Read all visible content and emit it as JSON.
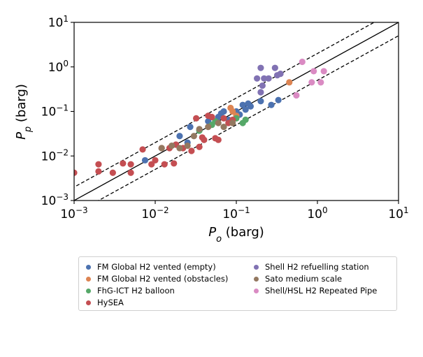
{
  "chart_data": {
    "type": "scatter",
    "xlabel_base": "P",
    "xlabel_sub": "o",
    "xlabel_unit": " (barg)",
    "ylabel_base": "P",
    "ylabel_sub": "p",
    "ylabel_unit": " (barg)",
    "xscale": "log",
    "yscale": "log",
    "xlim": [
      0.001,
      10
    ],
    "ylim": [
      0.001,
      10
    ],
    "grid": false,
    "legend_placement": "below",
    "ticks": [
      {
        "value": 0.001,
        "base": "10",
        "exp": "−3"
      },
      {
        "value": 0.01,
        "base": "10",
        "exp": "−2"
      },
      {
        "value": 0.1,
        "base": "10",
        "exp": "−1"
      },
      {
        "value": 1,
        "base": "10",
        "exp": "0"
      },
      {
        "value": 10,
        "base": "10",
        "exp": "1"
      }
    ],
    "reference_lines": [
      {
        "kind": "parity",
        "factor": 1,
        "style": "solid"
      },
      {
        "kind": "bound",
        "factor": 2,
        "style": "dashed"
      },
      {
        "kind": "bound",
        "factor": 0.5,
        "style": "dashed"
      }
    ],
    "series": [
      {
        "name": "FM Global H2 vented (empty)",
        "color": "#4c72b0",
        "points": [
          [
            0.0075,
            0.008
          ],
          [
            0.02,
            0.028
          ],
          [
            0.025,
            0.02
          ],
          [
            0.027,
            0.045
          ],
          [
            0.045,
            0.06
          ],
          [
            0.06,
            0.075
          ],
          [
            0.065,
            0.09
          ],
          [
            0.07,
            0.1
          ],
          [
            0.08,
            0.065
          ],
          [
            0.1,
            0.1
          ],
          [
            0.11,
            0.085
          ],
          [
            0.12,
            0.14
          ],
          [
            0.13,
            0.11
          ],
          [
            0.14,
            0.15
          ],
          [
            0.15,
            0.13
          ],
          [
            0.2,
            0.17
          ],
          [
            0.27,
            0.14
          ],
          [
            0.33,
            0.18
          ]
        ]
      },
      {
        "name": "FM Global H2 vented (obstacles)",
        "color": "#dd8452",
        "points": [
          [
            0.085,
            0.12
          ],
          [
            0.09,
            0.1
          ],
          [
            0.1,
            0.08
          ],
          [
            0.45,
            0.45
          ]
        ]
      },
      {
        "name": "FhG-ICT H2 balloon",
        "color": "#55a868",
        "points": [
          [
            0.035,
            0.037
          ],
          [
            0.05,
            0.05
          ],
          [
            0.055,
            0.06
          ],
          [
            0.1,
            0.07
          ],
          [
            0.12,
            0.055
          ],
          [
            0.13,
            0.065
          ]
        ]
      },
      {
        "name": "HySEA",
        "color": "#c44e52",
        "points": [
          [
            0.001,
            0.0042
          ],
          [
            0.002,
            0.0045
          ],
          [
            0.002,
            0.0065
          ],
          [
            0.003,
            0.0042
          ],
          [
            0.004,
            0.0068
          ],
          [
            0.005,
            0.0065
          ],
          [
            0.005,
            0.0042
          ],
          [
            0.007,
            0.014
          ],
          [
            0.009,
            0.0065
          ],
          [
            0.01,
            0.008
          ],
          [
            0.012,
            0.015
          ],
          [
            0.013,
            0.0065
          ],
          [
            0.015,
            0.015
          ],
          [
            0.017,
            0.0068
          ],
          [
            0.018,
            0.018
          ],
          [
            0.022,
            0.015
          ],
          [
            0.028,
            0.013
          ],
          [
            0.032,
            0.07
          ],
          [
            0.035,
            0.016
          ],
          [
            0.038,
            0.026
          ],
          [
            0.04,
            0.023
          ],
          [
            0.045,
            0.08
          ],
          [
            0.05,
            0.075
          ],
          [
            0.055,
            0.025
          ],
          [
            0.06,
            0.023
          ],
          [
            0.07,
            0.07
          ],
          [
            0.08,
            0.055
          ],
          [
            0.09,
            0.065
          ]
        ]
      },
      {
        "name": "Shell H2 refuelling station",
        "color": "#8172b3",
        "points": [
          [
            0.18,
            0.55
          ],
          [
            0.2,
            0.95
          ],
          [
            0.2,
            0.27
          ],
          [
            0.21,
            0.38
          ],
          [
            0.22,
            0.55
          ],
          [
            0.25,
            0.55
          ],
          [
            0.3,
            0.95
          ],
          [
            0.32,
            0.65
          ],
          [
            0.35,
            0.7
          ]
        ]
      },
      {
        "name": "Sato medium scale",
        "color": "#937860",
        "points": [
          [
            0.012,
            0.015
          ],
          [
            0.016,
            0.017
          ],
          [
            0.02,
            0.015
          ],
          [
            0.025,
            0.017
          ],
          [
            0.03,
            0.028
          ],
          [
            0.035,
            0.04
          ],
          [
            0.045,
            0.045
          ],
          [
            0.06,
            0.055
          ],
          [
            0.07,
            0.045
          ],
          [
            0.09,
            0.055
          ]
        ]
      },
      {
        "name": "Shell/HSL H2 Repeated Pipe",
        "color": "#da8bc3",
        "points": [
          [
            0.55,
            0.23
          ],
          [
            0.65,
            1.3
          ],
          [
            0.85,
            0.45
          ],
          [
            0.9,
            0.8
          ],
          [
            1.1,
            0.45
          ],
          [
            1.2,
            0.8
          ]
        ]
      }
    ]
  }
}
